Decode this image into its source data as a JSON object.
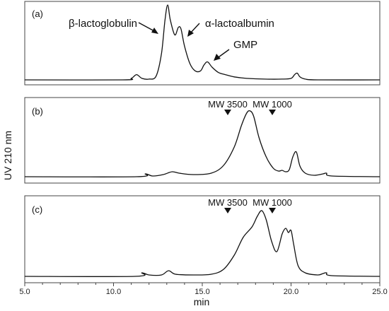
{
  "chart_data": {
    "type": "line",
    "xlabel": "min",
    "ylabel": "UV 210 nm",
    "xlim": [
      5.0,
      25.0
    ],
    "xticks": [
      "5.0",
      "10.0",
      "15.0",
      "20.0",
      "25.0"
    ],
    "panels": [
      {
        "label": "(a)",
        "annotations": [
          {
            "text": "β-lactoglobulin",
            "arrow_to_x": 13.1
          },
          {
            "text": "α-lactoalbumin",
            "arrow_to_x": 13.8
          },
          {
            "text": "GMP",
            "arrow_to_x": 15.2
          }
        ],
        "markers": [],
        "x": [
          5.0,
          10.5,
          11.0,
          11.3,
          11.6,
          12.0,
          12.4,
          12.7,
          12.9,
          13.05,
          13.2,
          13.45,
          13.65,
          13.8,
          14.0,
          14.3,
          14.6,
          14.9,
          15.1,
          15.3,
          15.55,
          15.9,
          16.3,
          16.8,
          17.5,
          18.5,
          19.5,
          20.0,
          20.2,
          20.35,
          20.5,
          20.8,
          21.5,
          25.0
        ],
        "y": [
          0.0,
          0.0,
          0.02,
          0.07,
          0.02,
          0.01,
          0.05,
          0.35,
          0.8,
          1.0,
          0.8,
          0.6,
          0.7,
          0.68,
          0.45,
          0.22,
          0.12,
          0.12,
          0.2,
          0.24,
          0.17,
          0.1,
          0.07,
          0.04,
          0.02,
          0.01,
          0.01,
          0.02,
          0.07,
          0.09,
          0.04,
          0.01,
          0.0,
          0.0
        ]
      },
      {
        "label": "(b)",
        "annotations": [],
        "markers": [
          {
            "text": "MW 3500",
            "x": 16.5
          },
          {
            "text": "MW 1000",
            "x": 19.0
          }
        ],
        "x": [
          5.0,
          11.3,
          11.8,
          12.2,
          12.8,
          13.3,
          13.7,
          14.5,
          15.5,
          16.2,
          16.8,
          17.2,
          17.5,
          17.7,
          17.9,
          18.2,
          18.6,
          19.0,
          19.3,
          19.5,
          19.7,
          19.9,
          20.1,
          20.3,
          20.5,
          20.8,
          21.3,
          21.8,
          22.0,
          22.3,
          25.0
        ],
        "y": [
          0.0,
          0.0,
          0.04,
          0.01,
          0.03,
          0.07,
          0.05,
          0.03,
          0.05,
          0.16,
          0.42,
          0.72,
          0.9,
          0.93,
          0.85,
          0.55,
          0.28,
          0.12,
          0.08,
          0.09,
          0.07,
          0.1,
          0.28,
          0.35,
          0.15,
          0.05,
          0.02,
          0.04,
          0.05,
          0.01,
          0.0
        ]
      },
      {
        "label": "(c)",
        "annotations": [],
        "markers": [
          {
            "text": "MW 3500",
            "x": 16.5
          },
          {
            "text": "MW 1000",
            "x": 19.0
          }
        ],
        "x": [
          5.0,
          11.2,
          11.6,
          12.0,
          12.7,
          13.1,
          13.5,
          14.5,
          15.5,
          16.2,
          16.8,
          17.3,
          17.8,
          18.1,
          18.35,
          18.6,
          18.9,
          19.2,
          19.5,
          19.7,
          19.85,
          20.0,
          20.15,
          20.4,
          20.8,
          21.5,
          21.8,
          22.0,
          22.3,
          25.0
        ],
        "y": [
          0.0,
          0.0,
          0.05,
          0.02,
          0.02,
          0.08,
          0.03,
          0.02,
          0.03,
          0.1,
          0.3,
          0.55,
          0.7,
          0.85,
          0.93,
          0.8,
          0.5,
          0.35,
          0.6,
          0.68,
          0.62,
          0.65,
          0.45,
          0.15,
          0.05,
          0.02,
          0.04,
          0.05,
          0.01,
          0.0
        ]
      }
    ]
  }
}
